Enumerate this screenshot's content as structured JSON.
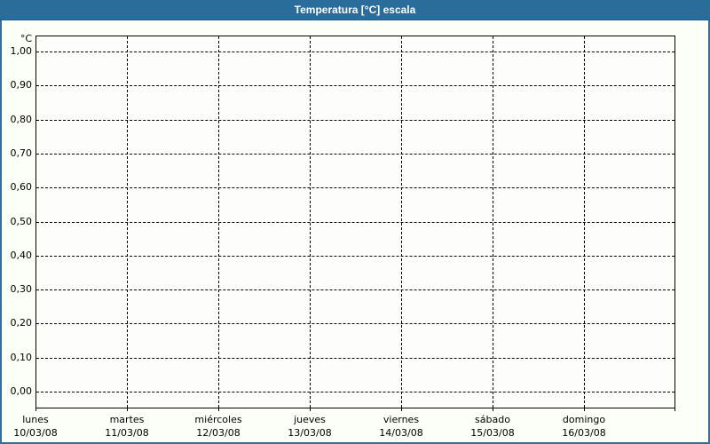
{
  "window": {
    "title": "Temperatura [°C] escala"
  },
  "colors": {
    "titlebar": "#2A6D9C",
    "titlebar_text": "#FFFFFF",
    "window_border": "#2E6F9F",
    "background": "#FCFEF8",
    "plot_background": "#FDFEFA",
    "grid": "#000000",
    "label_text": "#000000"
  },
  "chart_data": {
    "type": "line",
    "title": "Temperatura [°C] escala",
    "series": [],
    "y_axis": {
      "label": "°C",
      "min": 0.0,
      "max": 1.0,
      "tick_step": 0.1,
      "ticks": [
        "1,00",
        "0,90",
        "0,80",
        "0,70",
        "0,60",
        "0,50",
        "0,40",
        "0,30",
        "0,20",
        "0,10",
        "0,00"
      ],
      "grid": "dashed"
    },
    "x_axis": {
      "grid": "dashed",
      "categories": [
        {
          "day": "lunes",
          "date": "10/03/08"
        },
        {
          "day": "martes",
          "date": "11/03/08"
        },
        {
          "day": "miércoles",
          "date": "12/03/08"
        },
        {
          "day": "jueves",
          "date": "13/03/08"
        },
        {
          "day": "viernes",
          "date": "14/03/08"
        },
        {
          "day": "sábado",
          "date": "15/03/08"
        },
        {
          "day": "domingo",
          "date": "16/03/08"
        }
      ]
    },
    "legend": "none",
    "plot_is_empty": true
  }
}
